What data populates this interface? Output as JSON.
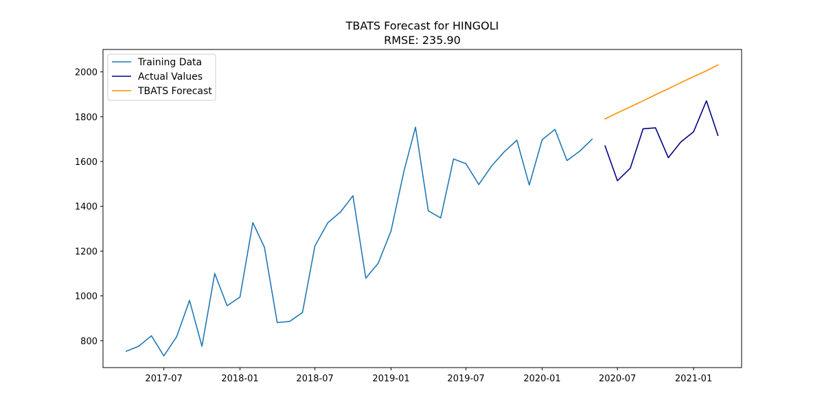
{
  "chart_data": {
    "type": "line",
    "title": "TBATS Forecast for HINGOLI",
    "subtitle": "RMSE: 235.90",
    "xlabel": "",
    "ylabel": "",
    "xlim": [
      "2017-02-04",
      "2021-04-27"
    ],
    "ylim": [
      680,
      2100
    ],
    "grid": false,
    "legend_position": "top-left",
    "x_ticks": [
      {
        "date": "2017-07-01",
        "label": "2017-07"
      },
      {
        "date": "2018-01-01",
        "label": "2018-01"
      },
      {
        "date": "2018-07-01",
        "label": "2018-07"
      },
      {
        "date": "2019-01-01",
        "label": "2019-01"
      },
      {
        "date": "2019-07-01",
        "label": "2019-07"
      },
      {
        "date": "2020-01-01",
        "label": "2020-01"
      },
      {
        "date": "2020-07-01",
        "label": "2020-07"
      },
      {
        "date": "2021-01-01",
        "label": "2021-01"
      }
    ],
    "y_ticks": [
      800,
      1000,
      1200,
      1400,
      1600,
      1800,
      2000
    ],
    "series": [
      {
        "name": "Training Data",
        "color": "#1f77b4",
        "x": [
          "2017-04-01",
          "2017-05-01",
          "2017-06-01",
          "2017-07-01",
          "2017-08-01",
          "2017-09-01",
          "2017-10-01",
          "2017-11-01",
          "2017-12-01",
          "2018-01-01",
          "2018-02-01",
          "2018-03-01",
          "2018-04-01",
          "2018-05-01",
          "2018-06-01",
          "2018-07-01",
          "2018-08-01",
          "2018-09-01",
          "2018-10-01",
          "2018-11-01",
          "2018-12-01",
          "2019-01-01",
          "2019-02-01",
          "2019-03-01",
          "2019-04-01",
          "2019-05-01",
          "2019-06-01",
          "2019-07-01",
          "2019-08-01",
          "2019-09-01",
          "2019-10-01",
          "2019-11-01",
          "2019-12-01",
          "2020-01-01",
          "2020-02-01",
          "2020-03-01",
          "2020-04-01",
          "2020-05-01"
        ],
        "y": [
          753,
          775,
          822,
          732,
          818,
          980,
          775,
          1100,
          956,
          995,
          1327,
          1217,
          881,
          886,
          926,
          1223,
          1326,
          1375,
          1447,
          1079,
          1146,
          1290,
          1556,
          1753,
          1380,
          1348,
          1611,
          1590,
          1497,
          1580,
          1642,
          1695,
          1495,
          1697,
          1743,
          1604,
          1646,
          1700
        ]
      },
      {
        "name": "Actual Values",
        "color": "#000080",
        "x": [
          "2020-06-01",
          "2020-07-01",
          "2020-08-01",
          "2020-09-01",
          "2020-10-01",
          "2020-11-01",
          "2020-12-01",
          "2021-01-01",
          "2021-02-01",
          "2021-03-01"
        ],
        "y": [
          1670,
          1514,
          1570,
          1746,
          1750,
          1617,
          1687,
          1733,
          1871,
          1716
        ]
      },
      {
        "name": "TBATS Forecast",
        "color": "#ff8c00",
        "x": [
          "2020-06-01",
          "2020-07-01",
          "2020-08-01",
          "2020-09-01",
          "2020-10-01",
          "2020-11-01",
          "2020-12-01",
          "2021-01-01",
          "2021-02-01",
          "2021-03-01"
        ],
        "y": [
          1790,
          1817,
          1844,
          1871,
          1898,
          1925,
          1952,
          1979,
          2005,
          2031
        ]
      }
    ]
  }
}
